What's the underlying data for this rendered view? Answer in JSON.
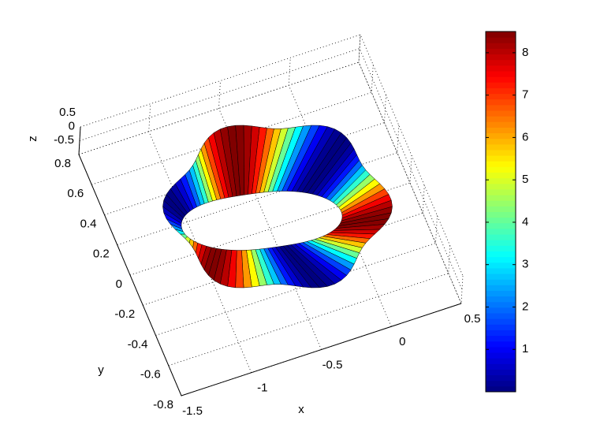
{
  "chart_data": {
    "type": "surface",
    "xlabel": "x",
    "ylabel": "y",
    "zlabel": "z",
    "xlim": [
      -1.5,
      0.5
    ],
    "xticks": [
      -1.5,
      -1,
      -0.5,
      0,
      0.5
    ],
    "ylim": [
      -0.8,
      0.8
    ],
    "yticks": [
      -0.8,
      -0.6,
      -0.4,
      -0.2,
      0,
      0.2,
      0.4,
      0.6,
      0.8
    ],
    "zlim": [
      -0.5,
      0.5
    ],
    "zticks": [
      -0.5,
      0,
      0.5
    ],
    "colormap": "jet",
    "clim": [
      0,
      8.5
    ],
    "cticks": [
      1,
      2,
      3,
      4,
      5,
      6,
      7,
      8
    ],
    "grid": true
  }
}
